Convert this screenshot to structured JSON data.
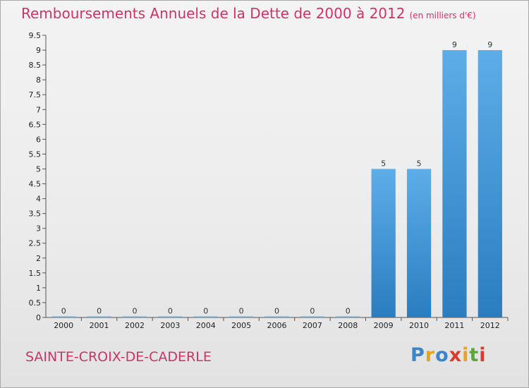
{
  "header": {
    "title": "Remboursements Annuels de la Dette de 2000 à 2012",
    "unit": "(en milliers d'€)"
  },
  "footer": {
    "commune": "SAINTE-CROIX-DE-CADERLE",
    "logo": "Proxiti"
  },
  "colors": {
    "title": "#cc3366",
    "bar_top": "#5dade8",
    "bar_bottom": "#2a7dbf"
  },
  "chart_data": {
    "type": "bar",
    "categories": [
      "2000",
      "2001",
      "2002",
      "2003",
      "2004",
      "2005",
      "2006",
      "2007",
      "2008",
      "2009",
      "2010",
      "2011",
      "2012"
    ],
    "values": [
      0,
      0,
      0,
      0,
      0,
      0,
      0,
      0,
      0,
      5,
      5,
      9,
      9
    ],
    "data_labels": [
      "0",
      "0",
      "0",
      "0",
      "0",
      "0",
      "0",
      "0",
      "0",
      "5",
      "5",
      "9",
      "9"
    ],
    "title": "Remboursements Annuels de la Dette de 2000 à 2012",
    "subtitle": "(en milliers d'€)",
    "xlabel": "",
    "ylabel": "",
    "ylim": [
      0,
      9.5
    ],
    "yticks": [
      0,
      0.5,
      1,
      1.5,
      2,
      2.5,
      3,
      3.5,
      4,
      4.5,
      5,
      5.5,
      6,
      6.5,
      7,
      7.5,
      8,
      8.5,
      9,
      9.5
    ],
    "ytick_labels": [
      "0",
      "0.5",
      "1",
      "1.5",
      "2",
      "2.5",
      "3",
      "3.5",
      "4",
      "4.5",
      "5",
      "5.5",
      "6",
      "6.5",
      "7",
      "7.5",
      "8",
      "8.5",
      "9",
      "9.5"
    ],
    "grid": false,
    "legend": "none"
  }
}
